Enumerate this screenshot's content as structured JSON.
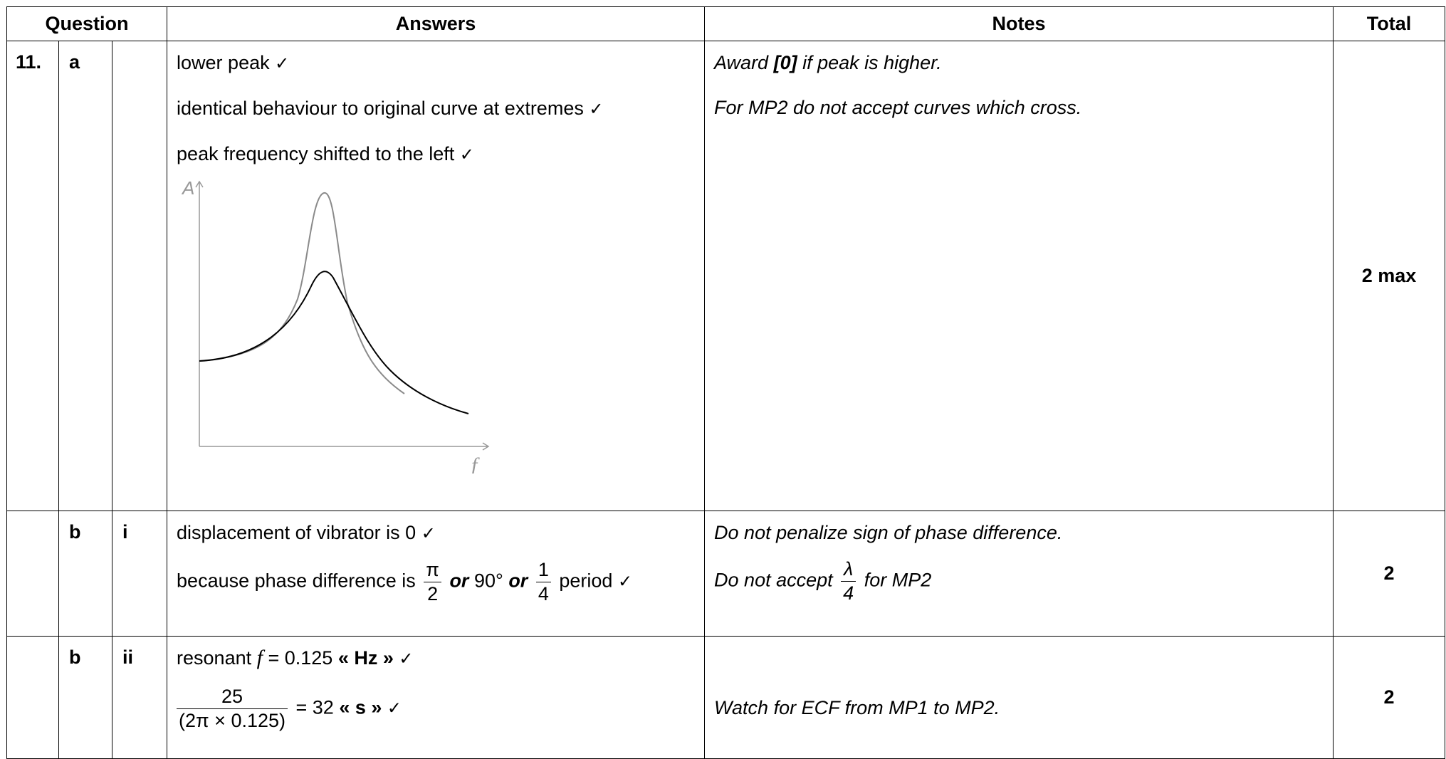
{
  "headers": {
    "question": "Question",
    "answers": "Answers",
    "notes": "Notes",
    "total": "Total"
  },
  "check": "✓",
  "row1": {
    "num": "11.",
    "part": "a",
    "sub": "",
    "answers": [
      "lower peak",
      "identical behaviour to original curve at extremes",
      "peak frequency shifted to the left"
    ],
    "graph": {
      "y_axis": "A",
      "x_axis": "f"
    },
    "notes": {
      "award_pre": "Award ",
      "award_bold": "[0]",
      "award_post": " if peak is higher.",
      "mp2": "For MP2 do not accept curves which cross."
    },
    "total": "2 max"
  },
  "row2": {
    "part": "b",
    "sub": "i",
    "answer1": "displacement of vibrator is 0",
    "answer2_pre": "because phase difference is",
    "pi_num": "π",
    "pi_den": "2",
    "or1": "or",
    "deg": "90°",
    "or2": "or",
    "q_num": "1",
    "q_den": "4",
    "answer2_post": "period",
    "note1": "Do not penalize sign of phase difference.",
    "note2_pre": "Do not accept",
    "lam_num": "λ",
    "lam_den": "4",
    "note2_post": "for MP2",
    "total": "2"
  },
  "row3": {
    "part": "b",
    "sub": "ii",
    "answer1_pre": "resonant",
    "answer1_var": "f",
    "answer1_eq": "= 0.125",
    "answer1_unit": "« Hz »",
    "frac_num": "25",
    "frac_den": "(2π × 0.125)",
    "answer2_eq": "= 32",
    "answer2_unit": "« s »",
    "note": "Watch for ECF from MP1 to MP2.",
    "total": "2"
  }
}
